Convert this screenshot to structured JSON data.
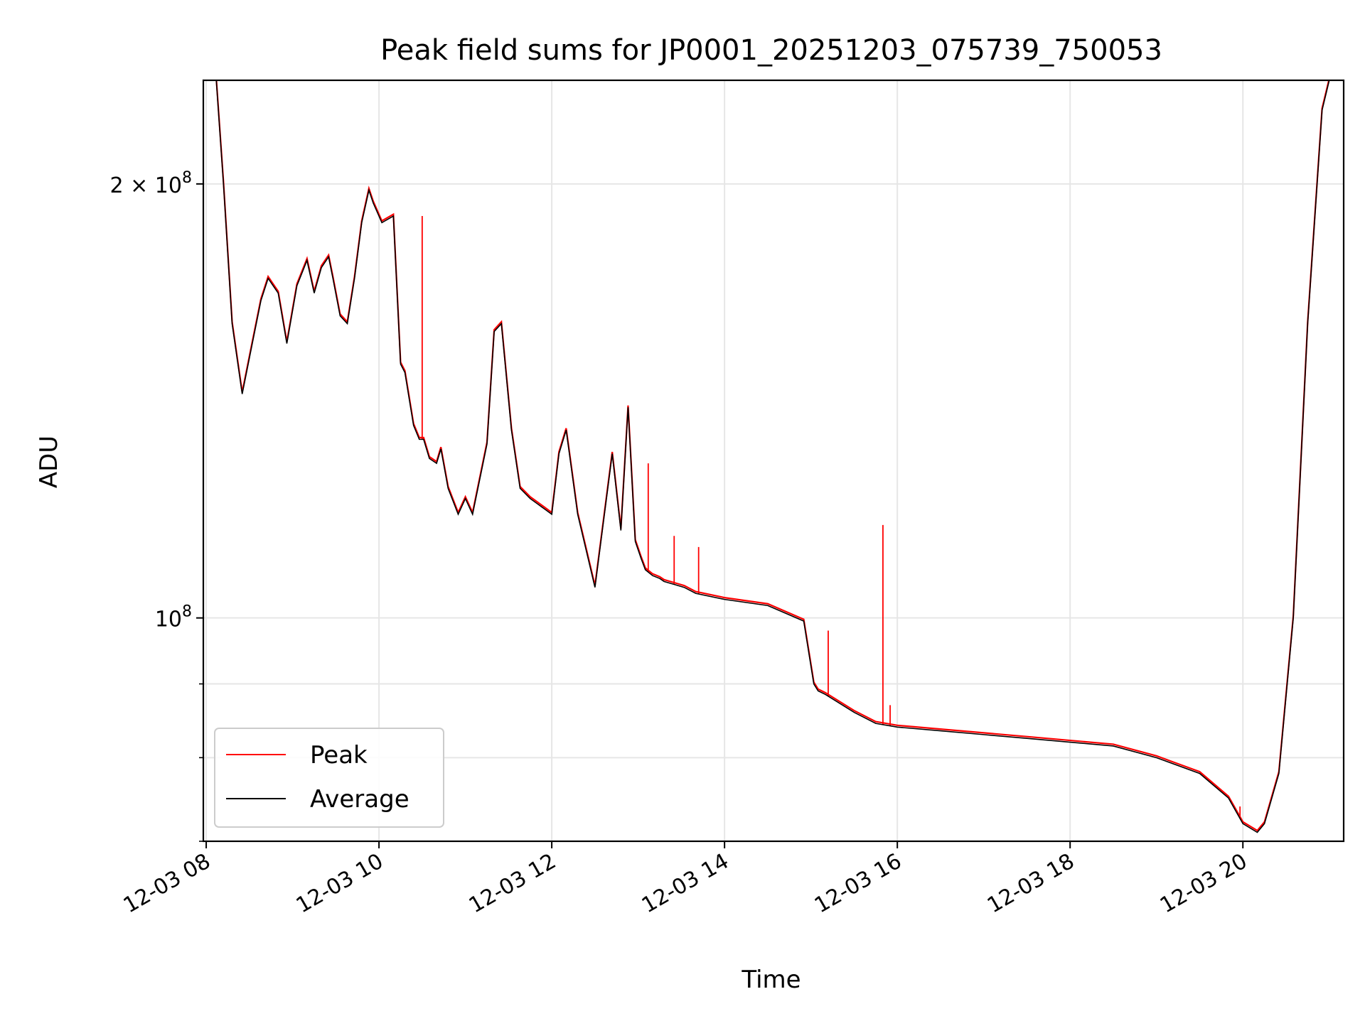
{
  "chart_data": {
    "type": "line",
    "title": "Peak field sums for JP0001_20251203_075739_750053",
    "xlabel": "Time",
    "ylabel": "ADU",
    "x_axis_type": "datetime",
    "xlim": [
      "2025-12-03T07:58",
      "2025-12-03T21:10"
    ],
    "ylim": [
      70000000,
      236000000
    ],
    "y_scale": "log",
    "grid": true,
    "legend_position": "lower-left",
    "x_ticks": [
      {
        "time": "2025-12-03T08:00",
        "label": "12-03 08"
      },
      {
        "time": "2025-12-03T10:00",
        "label": "12-03 10"
      },
      {
        "time": "2025-12-03T12:00",
        "label": "12-03 12"
      },
      {
        "time": "2025-12-03T14:00",
        "label": "12-03 14"
      },
      {
        "time": "2025-12-03T16:00",
        "label": "12-03 16"
      },
      {
        "time": "2025-12-03T18:00",
        "label": "12-03 18"
      },
      {
        "time": "2025-12-03T20:00",
        "label": "12-03 20"
      }
    ],
    "y_ticks": [
      {
        "value": 100000000,
        "base": "10",
        "exponent": "8",
        "times": ""
      },
      {
        "value": 200000000,
        "base": "10",
        "exponent": "8",
        "times": "2 × "
      }
    ],
    "y_minor_ticks": [
      70000000,
      80000000,
      90000000
    ],
    "series": [
      {
        "name": "Average",
        "color": "#000000",
        "x": [
          "2025-12-03T07:58",
          "2025-12-03T08:07",
          "2025-12-03T08:12",
          "2025-12-03T08:18",
          "2025-12-03T08:25",
          "2025-12-03T08:32",
          "2025-12-03T08:38",
          "2025-12-03T08:43",
          "2025-12-03T08:50",
          "2025-12-03T08:56",
          "2025-12-03T09:03",
          "2025-12-03T09:10",
          "2025-12-03T09:15",
          "2025-12-03T09:20",
          "2025-12-03T09:25",
          "2025-12-03T09:28",
          "2025-12-03T09:33",
          "2025-12-03T09:38",
          "2025-12-03T09:43",
          "2025-12-03T09:48",
          "2025-12-03T09:53",
          "2025-12-03T09:56",
          "2025-12-03T10:02",
          "2025-12-03T10:10",
          "2025-12-03T10:15",
          "2025-12-03T10:18",
          "2025-12-03T10:24",
          "2025-12-03T10:28",
          "2025-12-03T10:31",
          "2025-12-03T10:35",
          "2025-12-03T10:40",
          "2025-12-03T10:43",
          "2025-12-03T10:48",
          "2025-12-03T10:55",
          "2025-12-03T11:00",
          "2025-12-03T11:05",
          "2025-12-03T11:15",
          "2025-12-03T11:20",
          "2025-12-03T11:25",
          "2025-12-03T11:32",
          "2025-12-03T11:38",
          "2025-12-03T11:45",
          "2025-12-03T11:50",
          "2025-12-03T11:55",
          "2025-12-03T12:00",
          "2025-12-03T12:05",
          "2025-12-03T12:10",
          "2025-12-03T12:18",
          "2025-12-03T12:30",
          "2025-12-03T12:42",
          "2025-12-03T12:48",
          "2025-12-03T12:53",
          "2025-12-03T12:58",
          "2025-12-03T13:02",
          "2025-12-03T13:05",
          "2025-12-03T13:10",
          "2025-12-03T13:15",
          "2025-12-03T13:18",
          "2025-12-03T13:25",
          "2025-12-03T13:32",
          "2025-12-03T13:40",
          "2025-12-03T14:00",
          "2025-12-03T14:30",
          "2025-12-03T14:55",
          "2025-12-03T15:02",
          "2025-12-03T15:05",
          "2025-12-03T15:10",
          "2025-12-03T15:30",
          "2025-12-03T15:45",
          "2025-12-03T16:00",
          "2025-12-03T16:30",
          "2025-12-03T17:00",
          "2025-12-03T17:30",
          "2025-12-03T18:00",
          "2025-12-03T18:30",
          "2025-12-03T19:00",
          "2025-12-03T19:30",
          "2025-12-03T19:50",
          "2025-12-03T20:00",
          "2025-12-03T20:10",
          "2025-12-03T20:15",
          "2025-12-03T20:25",
          "2025-12-03T20:35",
          "2025-12-03T20:45",
          "2025-12-03T20:55",
          "2025-12-03T21:00",
          "2025-12-03T21:10"
        ],
        "y": [
          236000000,
          236000000,
          200000000,
          160000000,
          143000000,
          155000000,
          166000000,
          172000000,
          168000000,
          155000000,
          170000000,
          177000000,
          168000000,
          175000000,
          178000000,
          172000000,
          162000000,
          160000000,
          172000000,
          188000000,
          198000000,
          194000000,
          188000000,
          190000000,
          150000000,
          148000000,
          136000000,
          133000000,
          133000000,
          129000000,
          128000000,
          131000000,
          123000000,
          118000000,
          121000000,
          118000000,
          132000000,
          158000000,
          160000000,
          135000000,
          123000000,
          121000000,
          120000000,
          119000000,
          118000000,
          130000000,
          135000000,
          118000000,
          105000000,
          130000000,
          115000000,
          140000000,
          113000000,
          110000000,
          108000000,
          107000000,
          106500000,
          106000000,
          105500000,
          105000000,
          104000000,
          103000000,
          102000000,
          99500000,
          90000000,
          89000000,
          88500000,
          86000000,
          84500000,
          84000000,
          83500000,
          83000000,
          82500000,
          82000000,
          81500000,
          80000000,
          78000000,
          75000000,
          72000000,
          71000000,
          72000000,
          78000000,
          100000000,
          160000000,
          225000000,
          236000000,
          236000000
        ]
      },
      {
        "name": "Peak",
        "color": "#ff0000",
        "spikes": [
          {
            "x": "2025-12-03T10:30",
            "y": 190000000
          },
          {
            "x": "2025-12-03T13:07",
            "y": 128000000
          },
          {
            "x": "2025-12-03T13:25",
            "y": 114000000
          },
          {
            "x": "2025-12-03T13:42",
            "y": 112000000
          },
          {
            "x": "2025-12-03T15:12",
            "y": 98000000
          },
          {
            "x": "2025-12-03T15:50",
            "y": 116000000
          },
          {
            "x": "2025-12-03T15:55",
            "y": 87000000
          },
          {
            "x": "2025-12-03T19:58",
            "y": 74000000
          }
        ]
      }
    ]
  }
}
